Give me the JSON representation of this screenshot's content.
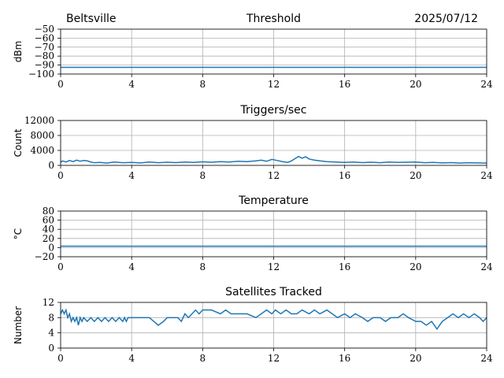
{
  "header": {
    "station": "Beltsville",
    "date": "2025/07/12"
  },
  "colors": {
    "line": "#1f77b4",
    "grid": "#b0b0b0",
    "axis": "#000000"
  },
  "chart_data": [
    {
      "id": "threshold",
      "type": "line",
      "title": "Threshold",
      "xlabel": "",
      "ylabel": "dBm",
      "xlim": [
        0,
        24
      ],
      "ylim": [
        -100,
        -50
      ],
      "xticks": [
        0,
        4,
        8,
        12,
        16,
        20,
        24
      ],
      "yticks": [
        -100,
        -90,
        -80,
        -70,
        -60,
        -50
      ],
      "ytick_labels": [
        "−100",
        "−90",
        "−80",
        "−70",
        "−60",
        "−50"
      ],
      "grid": true,
      "x": [
        0,
        24
      ],
      "y": [
        -92.5,
        -92.5
      ]
    },
    {
      "id": "triggers",
      "type": "line",
      "title": "Triggers/sec",
      "xlabel": "",
      "ylabel": "Count",
      "xlim": [
        0,
        24
      ],
      "ylim": [
        0,
        12000
      ],
      "xticks": [
        0,
        4,
        8,
        12,
        16,
        20,
        24
      ],
      "yticks": [
        0,
        4000,
        8000,
        12000
      ],
      "ytick_labels": [
        "0",
        "4000",
        "8000",
        "12000"
      ],
      "grid": true,
      "x": [
        0,
        0.1,
        0.3,
        0.5,
        0.7,
        0.9,
        1.1,
        1.3,
        1.5,
        1.7,
        1.9,
        2.2,
        2.6,
        3.0,
        3.5,
        4.0,
        4.5,
        5.0,
        5.5,
        6.0,
        6.5,
        7.0,
        7.5,
        8.0,
        8.5,
        9.0,
        9.5,
        10.0,
        10.5,
        11.0,
        11.3,
        11.6,
        11.9,
        12.2,
        12.5,
        12.8,
        13.0,
        13.2,
        13.4,
        13.6,
        13.8,
        14.0,
        14.3,
        14.6,
        15.0,
        15.5,
        16.0,
        16.5,
        17.0,
        17.5,
        18.0,
        18.5,
        19.0,
        19.5,
        20.0,
        20.5,
        21.0,
        21.5,
        22.0,
        22.5,
        23.0,
        23.5,
        24.0
      ],
      "y": [
        800,
        1200,
        900,
        1300,
        1000,
        1400,
        1100,
        1300,
        1200,
        900,
        700,
        800,
        600,
        900,
        700,
        800,
        650,
        900,
        700,
        850,
        750,
        900,
        800,
        950,
        850,
        1000,
        900,
        1100,
        1000,
        1200,
        1400,
        1100,
        1600,
        1300,
        1000,
        800,
        1200,
        1800,
        2400,
        1900,
        2300,
        1700,
        1400,
        1200,
        1000,
        900,
        800,
        900,
        750,
        850,
        700,
        900,
        800,
        850,
        900,
        700,
        800,
        650,
        750,
        600,
        700,
        650,
        600
      ]
    },
    {
      "id": "temperature",
      "type": "line",
      "title": "Temperature",
      "xlabel": "",
      "ylabel": "°C",
      "xlim": [
        0,
        24
      ],
      "ylim": [
        -20,
        80
      ],
      "xticks": [
        0,
        4,
        8,
        12,
        16,
        20,
        24
      ],
      "yticks": [
        -20,
        0,
        20,
        40,
        60,
        80
      ],
      "ytick_labels": [
        "−20",
        "0",
        "20",
        "40",
        "60",
        "80"
      ],
      "grid": true,
      "x": [
        0,
        24
      ],
      "y": [
        3,
        3
      ]
    },
    {
      "id": "satellites",
      "type": "line",
      "title": "Satellites Tracked",
      "xlabel": "",
      "ylabel": "Number",
      "xlim": [
        0,
        24
      ],
      "ylim": [
        0,
        12
      ],
      "xticks": [
        0,
        4,
        8,
        12,
        16,
        20,
        24
      ],
      "yticks": [
        0,
        4,
        8,
        12
      ],
      "ytick_labels": [
        "0",
        "4",
        "8",
        "12"
      ],
      "grid": true,
      "x": [
        0,
        0.1,
        0.2,
        0.3,
        0.4,
        0.5,
        0.6,
        0.7,
        0.8,
        0.9,
        1.0,
        1.1,
        1.2,
        1.3,
        1.5,
        1.7,
        1.9,
        2.1,
        2.3,
        2.5,
        2.7,
        2.9,
        3.1,
        3.3,
        3.5,
        3.6,
        3.7,
        3.8,
        4.0,
        4.5,
        5.0,
        5.5,
        5.8,
        6.0,
        6.3,
        6.6,
        6.8,
        7.0,
        7.2,
        7.4,
        7.6,
        7.8,
        8.0,
        8.5,
        9.0,
        9.3,
        9.6,
        10.0,
        10.5,
        11.0,
        11.3,
        11.6,
        11.9,
        12.1,
        12.4,
        12.7,
        13.0,
        13.3,
        13.6,
        14.0,
        14.3,
        14.6,
        15.0,
        15.3,
        15.6,
        16.0,
        16.3,
        16.6,
        17.0,
        17.3,
        17.6,
        18.0,
        18.3,
        18.6,
        19.0,
        19.3,
        19.6,
        20.0,
        20.3,
        20.6,
        20.9,
        21.2,
        21.5,
        21.8,
        22.1,
        22.4,
        22.7,
        23.0,
        23.3,
        23.6,
        23.8,
        24.0
      ],
      "y": [
        9,
        10,
        9,
        10,
        8,
        9,
        7,
        8,
        7,
        8,
        6,
        8,
        7,
        8,
        7,
        8,
        7,
        8,
        7,
        8,
        7,
        8,
        7,
        8,
        7,
        8,
        7,
        8,
        8,
        8,
        8,
        6,
        7,
        8,
        8,
        8,
        7,
        9,
        8,
        9,
        10,
        9,
        10,
        10,
        9,
        10,
        9,
        9,
        9,
        8,
        9,
        10,
        9,
        10,
        9,
        10,
        9,
        9,
        10,
        9,
        10,
        9,
        10,
        9,
        8,
        9,
        8,
        9,
        8,
        7,
        8,
        8,
        7,
        8,
        8,
        9,
        8,
        7,
        7,
        6,
        7,
        5,
        7,
        8,
        9,
        8,
        9,
        8,
        9,
        8,
        7,
        8
      ]
    }
  ]
}
